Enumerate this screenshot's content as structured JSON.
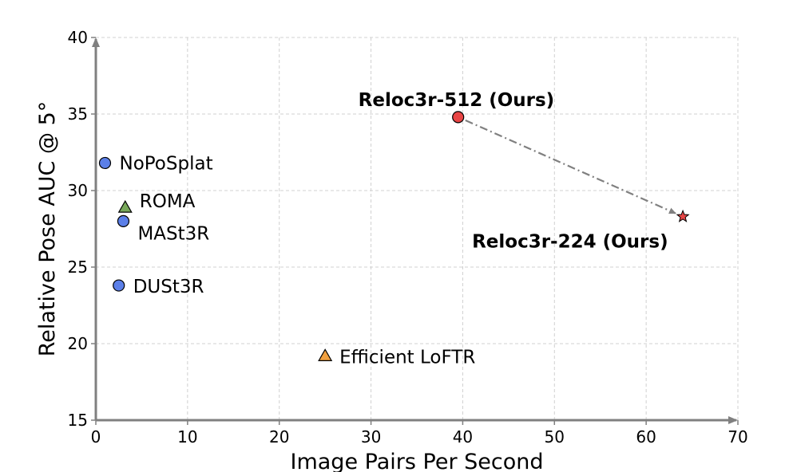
{
  "chart_data": {
    "type": "scatter",
    "xlabel": "Image Pairs Per Second",
    "ylabel": "Relative Pose AUC @ 5°",
    "xlim": [
      0,
      70
    ],
    "ylim": [
      15,
      40
    ],
    "xticks": [
      "0",
      "10",
      "20",
      "30",
      "40",
      "50",
      "60",
      "70"
    ],
    "yticks": [
      "15",
      "20",
      "25",
      "30",
      "35",
      "40"
    ],
    "grid": true,
    "points": [
      {
        "label": "NoPoSplat",
        "x": 1.0,
        "y": 31.8,
        "marker": "circle",
        "color": "#5b7fe8",
        "bold": false
      },
      {
        "label": "ROMA",
        "x": 3.2,
        "y": 28.9,
        "marker": "triangle",
        "color": "#78a85a",
        "bold": false
      },
      {
        "label": "MASt3R",
        "x": 3.0,
        "y": 28.0,
        "marker": "circle",
        "color": "#5b7fe8",
        "bold": false
      },
      {
        "label": "DUSt3R",
        "x": 2.5,
        "y": 23.8,
        "marker": "circle",
        "color": "#5b7fe8",
        "bold": false
      },
      {
        "label": "Efficient LoFTR",
        "x": 25.0,
        "y": 19.2,
        "marker": "triangle",
        "color": "#f0a040",
        "bold": false
      },
      {
        "label": "Reloc3r-512 (Ours)",
        "x": 39.5,
        "y": 34.8,
        "marker": "circle",
        "color": "#e84545",
        "bold": true
      },
      {
        "label": "Reloc3r-224 (Ours)",
        "x": 64.0,
        "y": 28.3,
        "marker": "star",
        "color": "#e84545",
        "bold": true
      }
    ],
    "arrow": {
      "from": [
        39.5,
        34.8
      ],
      "to": [
        64.0,
        28.3
      ]
    }
  }
}
